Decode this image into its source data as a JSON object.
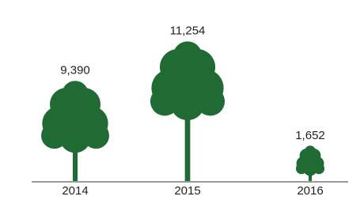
{
  "chart_data": {
    "type": "pictogram",
    "categories": [
      "2014",
      "2015",
      "2016"
    ],
    "values": [
      9390,
      11254,
      1652
    ],
    "value_labels": [
      "9,390",
      "11,254",
      "1,652"
    ],
    "color": "#1f6b33"
  }
}
